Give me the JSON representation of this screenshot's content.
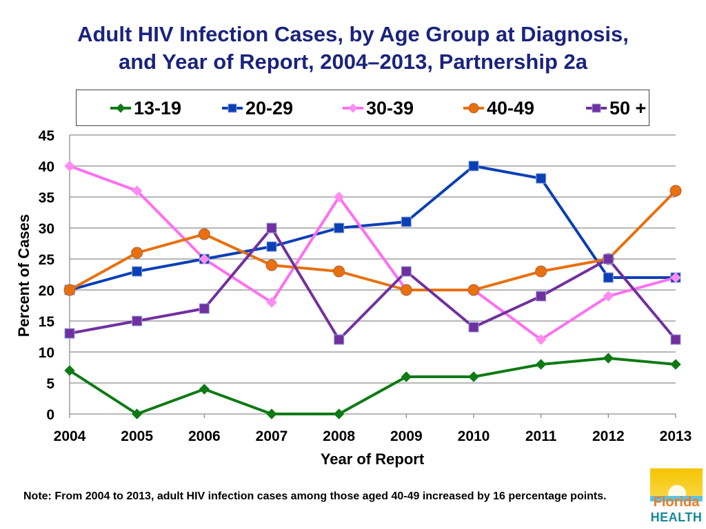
{
  "title": {
    "line1": "Adult HIV Infection Cases, by Age Group at Diagnosis,",
    "line2": "and Year of Report, 2004–2013, Partnership 2a"
  },
  "note": "Note: From 2004 to 2013, adult HIV infection cases among those aged 40-49 increased by 16 percentage points.",
  "logo": {
    "line1": "Florida",
    "line2": "HEALTH"
  },
  "chart_data": {
    "type": "line",
    "title": "Adult HIV Infection Cases, by Age Group at Diagnosis, and Year of Report, 2004–2013, Partnership 2a",
    "xlabel": "Year of Report",
    "ylabel": "Percent of Cases",
    "x": [
      "2004",
      "2005",
      "2006",
      "2007",
      "2008",
      "2009",
      "2010",
      "2011",
      "2012",
      "2013"
    ],
    "ylim": [
      0,
      45
    ],
    "yticks": [
      0,
      5,
      10,
      15,
      20,
      25,
      30,
      35,
      40,
      45
    ],
    "grid": true,
    "legend_position": "top",
    "series": [
      {
        "name": "13-19",
        "color": "#0e7a14",
        "marker": "diamond",
        "values": [
          7,
          0,
          4,
          0,
          0,
          6,
          6,
          8,
          9,
          8
        ]
      },
      {
        "name": "20-29",
        "color": "#0a3fb5",
        "marker": "square",
        "values": [
          20,
          23,
          25,
          27,
          30,
          31,
          40,
          38,
          22,
          22
        ]
      },
      {
        "name": "30-39",
        "color": "#ff6ef2",
        "marker": "diamond",
        "values": [
          40,
          36,
          25,
          18,
          35,
          20,
          20,
          12,
          19,
          22
        ]
      },
      {
        "name": "40-49",
        "color": "#e8700f",
        "marker": "circle",
        "values": [
          20,
          26,
          29,
          24,
          23,
          20,
          20,
          23,
          25,
          36
        ]
      },
      {
        "name": "50 +",
        "color": "#7030a0",
        "marker": "square",
        "values": [
          13,
          15,
          17,
          30,
          12,
          23,
          14,
          19,
          25,
          12
        ]
      }
    ]
  }
}
